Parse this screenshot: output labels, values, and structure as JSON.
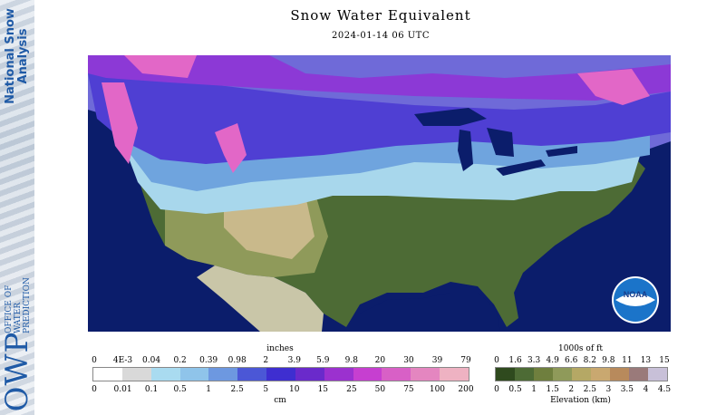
{
  "sidebar": {
    "nsa_title": "National Snow\nAnalysis",
    "owp_mark": "OWP",
    "owp_lines": "OFFICE OF\nWATER\nPREDICTION"
  },
  "header": {
    "title": "Snow Water Equivalent",
    "subtitle": "2024-01-14 06 UTC"
  },
  "map": {
    "logo_text": "NOAA",
    "colors": {
      "ocean": "#0b1d6b",
      "land_low": "#4d6b35",
      "land_mid": "#8f9a5a",
      "land_high": "#c9b98b",
      "snow_light": "#a8d7ec",
      "snow_mid": "#6fa4de",
      "snow_heavy": "#4f3fd3",
      "snow_deep": "#a03ed9",
      "snow_max": "#e267c7",
      "lake": "#0b1d6b"
    }
  },
  "swe_legend": {
    "top_label": "inches",
    "bottom_label": "cm",
    "inch_ticks": [
      "0",
      "4E-3",
      "0.04",
      "0.2",
      "0.39",
      "0.98",
      "2",
      "3.9",
      "5.9",
      "9.8",
      "20",
      "30",
      "39",
      "79"
    ],
    "cm_ticks": [
      "0",
      "0.01",
      "0.1",
      "0.5",
      "1",
      "2.5",
      "5",
      "10",
      "15",
      "25",
      "50",
      "75",
      "100",
      "200"
    ],
    "colors": [
      "#ffffff",
      "#d9d9d9",
      "#a9dbf0",
      "#8fc4ea",
      "#6d98e0",
      "#4b57d6",
      "#3e2ed0",
      "#6a2acb",
      "#9b31cf",
      "#c63fd0",
      "#d860c6",
      "#e486c0",
      "#eeb2c2"
    ]
  },
  "elev_legend": {
    "top_label": "1000s of ft",
    "bottom_label": "Elevation (km)",
    "ft_ticks": [
      "0",
      "1.6",
      "3.3",
      "4.9",
      "6.6",
      "8.2",
      "9.8",
      "11",
      "13",
      "15"
    ],
    "km_ticks": [
      "0",
      "0.5",
      "1",
      "1.5",
      "2",
      "2.5",
      "3",
      "3.5",
      "4",
      "4.5"
    ],
    "colors": [
      "#2f4a1e",
      "#4d6b35",
      "#6f7f3e",
      "#8f9a5a",
      "#b5a865",
      "#c9a870",
      "#b88a5c",
      "#9a7a7a",
      "#c8c0d8"
    ]
  }
}
